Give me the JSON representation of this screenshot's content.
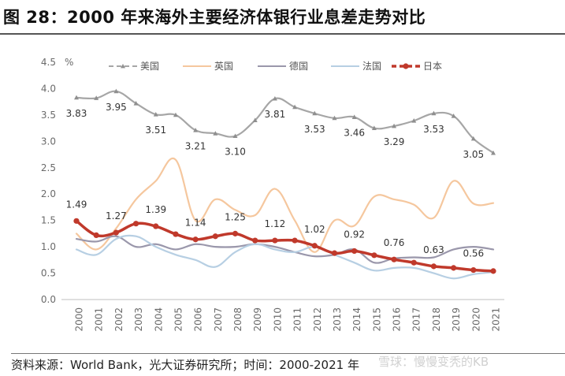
{
  "header": {
    "title": "图 28：2000 年来海外主要经济体银行业息差走势对比"
  },
  "footer": {
    "source": "资料来源：World Bank，光大证券研究所；时间：2000-2021 年",
    "watermark": "雪球：慢慢变秃的KB"
  },
  "chart_data": {
    "type": "line",
    "title": "",
    "xlabel": "",
    "ylabel": "%",
    "ylim": [
      0,
      4.5
    ],
    "yticks": [
      "0.0",
      "0.5",
      "1.0",
      "1.5",
      "2.0",
      "2.5",
      "3.0",
      "3.5",
      "4.0",
      "4.5"
    ],
    "legend_position": "top",
    "categories": [
      "2000",
      "2001",
      "2002",
      "2003",
      "2004",
      "2005",
      "2006",
      "2007",
      "2008",
      "2009",
      "2010",
      "2011",
      "2012",
      "2013",
      "2014",
      "2015",
      "2016",
      "2017",
      "2018",
      "2019",
      "2020",
      "2021"
    ],
    "series": [
      {
        "name": "美国",
        "color": "#a6a6a6",
        "marker": "triangle",
        "values": [
          3.83,
          3.82,
          3.95,
          3.72,
          3.51,
          3.5,
          3.21,
          3.15,
          3.1,
          3.4,
          3.81,
          3.65,
          3.53,
          3.44,
          3.46,
          3.25,
          3.29,
          3.39,
          3.53,
          3.48,
          3.05,
          2.78
        ],
        "labels": {
          "0": "3.83",
          "2": "3.95",
          "4": "3.51",
          "6": "3.21",
          "8": "3.10",
          "10": "3.81",
          "12": "3.53",
          "14": "3.46",
          "16": "3.29",
          "18": "3.53",
          "20": "3.05"
        }
      },
      {
        "name": "英国",
        "color": "#f5c79e",
        "marker": "none",
        "values": [
          1.25,
          0.95,
          1.35,
          1.9,
          2.25,
          2.65,
          1.5,
          1.9,
          1.7,
          1.6,
          2.1,
          1.5,
          0.9,
          1.5,
          1.4,
          1.95,
          1.9,
          1.8,
          1.55,
          2.25,
          1.82,
          1.83
        ],
        "labels": {}
      },
      {
        "name": "德国",
        "color": "#9a97ab",
        "marker": "none",
        "values": [
          1.15,
          1.1,
          1.2,
          1.0,
          1.05,
          0.95,
          1.05,
          1.0,
          1.0,
          1.05,
          1.0,
          0.9,
          0.82,
          0.85,
          0.95,
          0.7,
          0.78,
          0.8,
          0.8,
          0.95,
          1.0,
          0.95
        ],
        "labels": {}
      },
      {
        "name": "法国",
        "color": "#b7cfe3",
        "marker": "none",
        "values": [
          0.95,
          0.85,
          1.15,
          1.2,
          1.0,
          0.85,
          0.75,
          0.62,
          0.9,
          1.05,
          0.95,
          0.9,
          1.0,
          0.85,
          0.7,
          0.55,
          0.6,
          0.6,
          0.5,
          0.4,
          0.48,
          0.52
        ],
        "labels": {}
      },
      {
        "name": "日本",
        "color": "#c0392b",
        "marker": "circle",
        "values": [
          1.49,
          1.22,
          1.27,
          1.44,
          1.39,
          1.24,
          1.14,
          1.2,
          1.25,
          1.12,
          1.12,
          1.12,
          1.02,
          0.88,
          0.92,
          0.84,
          0.76,
          0.7,
          0.63,
          0.6,
          0.56,
          0.54
        ],
        "labels": {
          "0": "1.49",
          "2": "1.27",
          "4": "1.39",
          "6": "1.14",
          "8": "1.25",
          "10": "1.12",
          "12": "1.02",
          "14": "0.92",
          "16": "0.76",
          "18": "0.63",
          "20": "0.56"
        }
      }
    ]
  }
}
